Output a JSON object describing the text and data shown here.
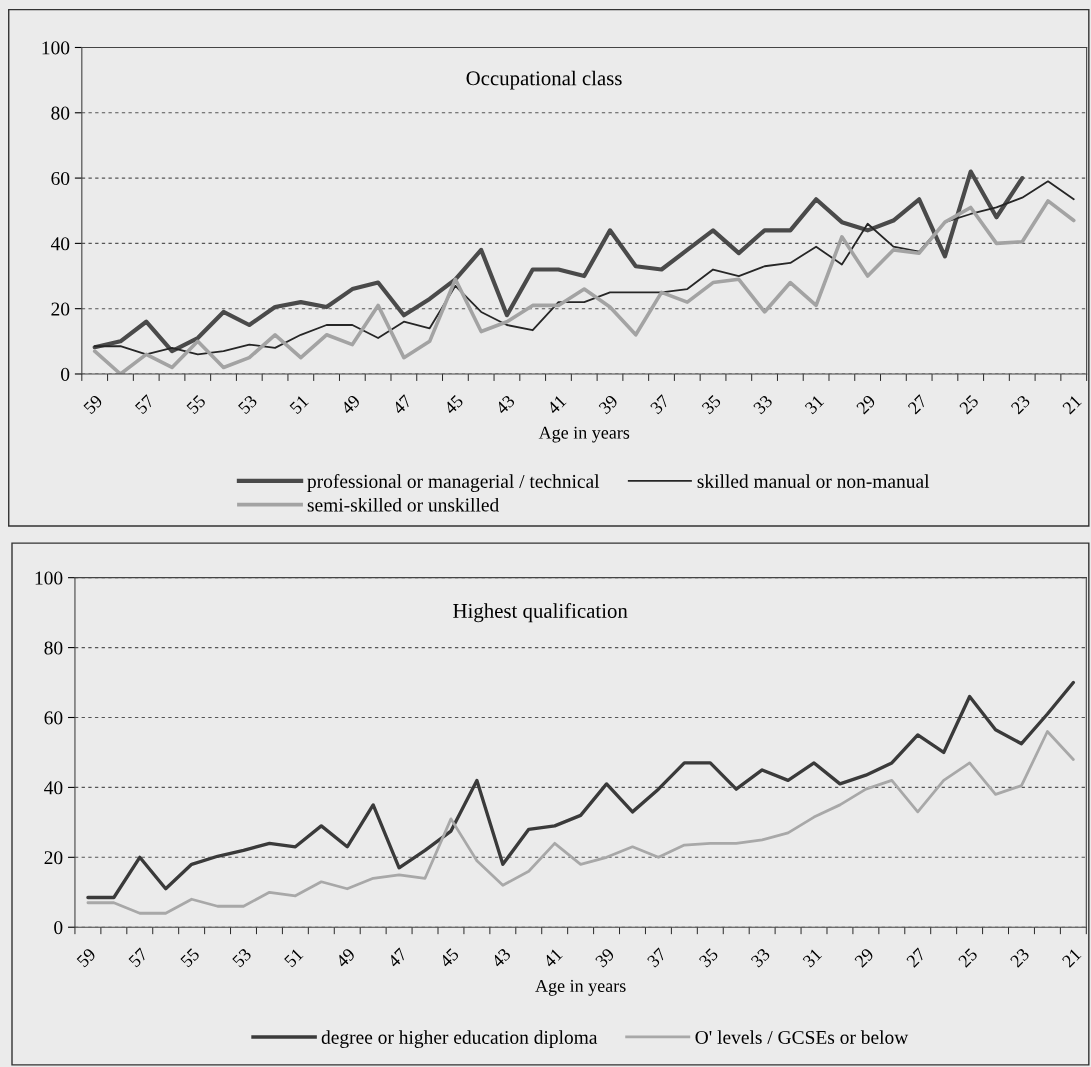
{
  "chart_data": [
    {
      "type": "line",
      "title": "Occupational class",
      "xlabel": "Age in years",
      "categories": [
        "59",
        null,
        "57",
        null,
        "55",
        null,
        "53",
        null,
        "51",
        null,
        "49",
        null,
        "47",
        null,
        "45",
        null,
        "43",
        null,
        "41",
        null,
        "39",
        null,
        "37",
        null,
        "35",
        null,
        "33",
        null,
        "31",
        null,
        "29",
        null,
        "27",
        null,
        "25",
        null,
        "23",
        null,
        "21"
      ],
      "series": [
        {
          "name": "professional or managerial / technical",
          "color": "#4a4a4a",
          "values": [
            8.2,
            10,
            16,
            7,
            11,
            19,
            15,
            20.5,
            22,
            20.5,
            26,
            28,
            18,
            23,
            29,
            38,
            18,
            32,
            32,
            30,
            44,
            33,
            32,
            38,
            44,
            37,
            44,
            44,
            53.5,
            46.5,
            44,
            47,
            53.5,
            36,
            62,
            48,
            60,
            null,
            null
          ]
        },
        {
          "name": "skilled manual or non-manual",
          "color": "#262626",
          "values": [
            8.5,
            8.5,
            6,
            8,
            6,
            7,
            9,
            8,
            12,
            15,
            15,
            11,
            16,
            14,
            27,
            19,
            15,
            13.4,
            22,
            22,
            25,
            25,
            25,
            26,
            32,
            30,
            33,
            34,
            39,
            33.5,
            46,
            39,
            37.5,
            46.5,
            49,
            51,
            54,
            59,
            53.5
          ]
        },
        {
          "name": "semi-skilled or unskilled",
          "color": "#a3a3a3",
          "values": [
            7,
            0,
            6,
            2,
            10,
            2,
            5,
            12,
            5,
            12,
            9,
            21,
            5,
            10,
            29,
            13,
            16,
            21,
            21,
            26,
            20.5,
            12,
            25,
            22,
            28,
            29,
            19,
            28,
            21,
            42,
            30,
            38,
            37,
            46.5,
            51,
            40,
            40.5,
            53,
            47
          ]
        }
      ],
      "ylim": [
        0,
        100
      ],
      "yticks": [
        0,
        20,
        40,
        60,
        80,
        100
      ],
      "grid": "y",
      "legend": "bottom"
    },
    {
      "type": "line",
      "title": "Highest qualification",
      "xlabel": "Age in years",
      "categories": [
        "59",
        null,
        "57",
        null,
        "55",
        null,
        "53",
        null,
        "51",
        null,
        "49",
        null,
        "47",
        null,
        "45",
        null,
        "43",
        null,
        "41",
        null,
        "39",
        null,
        "37",
        null,
        "35",
        null,
        "33",
        null,
        "31",
        null,
        "29",
        null,
        "27",
        null,
        "25",
        null,
        "23",
        null,
        "21"
      ],
      "series": [
        {
          "name": "degree or higher education diploma",
          "color": "#3a3a3a",
          "values": [
            8.5,
            8.5,
            20,
            11,
            18,
            20.3,
            22,
            24,
            23,
            29,
            23,
            35,
            17,
            22,
            27.5,
            42,
            18,
            28,
            29,
            32,
            41,
            33,
            39.5,
            47,
            47,
            39.5,
            45,
            42,
            47,
            41,
            43.5,
            47,
            55,
            50,
            66,
            56.5,
            52.5,
            61,
            70
          ]
        },
        {
          "name": "O' levels / GCSEs or below",
          "color": "#a8a8a8",
          "values": [
            7,
            7,
            4,
            4,
            8,
            6,
            6,
            10,
            9,
            13,
            11,
            14,
            15,
            14,
            31,
            19,
            12,
            16,
            24,
            18,
            20,
            23,
            20,
            23.5,
            24,
            24,
            25,
            27,
            31.5,
            35,
            39.5,
            42,
            33,
            42,
            47,
            38,
            40.5,
            56,
            48
          ]
        }
      ],
      "ylim": [
        0,
        100
      ],
      "yticks": [
        0,
        20,
        40,
        60,
        80,
        100
      ],
      "grid": "y",
      "legend": "bottom"
    }
  ]
}
